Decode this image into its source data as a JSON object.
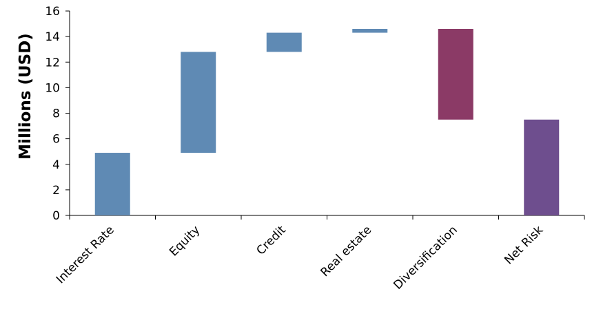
{
  "chart_data": {
    "type": "bar",
    "subtype": "waterfall",
    "title": "",
    "xlabel": "",
    "ylabel": "Millions (USD)",
    "ylim": [
      0,
      16
    ],
    "yticks": [
      0,
      2,
      4,
      6,
      8,
      10,
      12,
      14,
      16
    ],
    "grid": false,
    "legend": "none",
    "categories": [
      "Interest Rate",
      "Equity",
      "Credit",
      "Real estate",
      "Diversification",
      "Net Risk"
    ],
    "bars": [
      {
        "category": "Interest Rate",
        "bottom": 0,
        "top": 4.9,
        "color": "#5f8ab4"
      },
      {
        "category": "Equity",
        "bottom": 4.9,
        "top": 12.8,
        "color": "#5f8ab4"
      },
      {
        "category": "Credit",
        "bottom": 12.8,
        "top": 14.3,
        "color": "#5f8ab4"
      },
      {
        "category": "Real estate",
        "bottom": 14.3,
        "top": 14.6,
        "color": "#5f8ab4"
      },
      {
        "category": "Diversification",
        "bottom": 7.5,
        "top": 14.6,
        "color": "#8b3a66"
      },
      {
        "category": "Net Risk",
        "bottom": 0,
        "top": 7.5,
        "color": "#6e4e8e"
      }
    ]
  }
}
